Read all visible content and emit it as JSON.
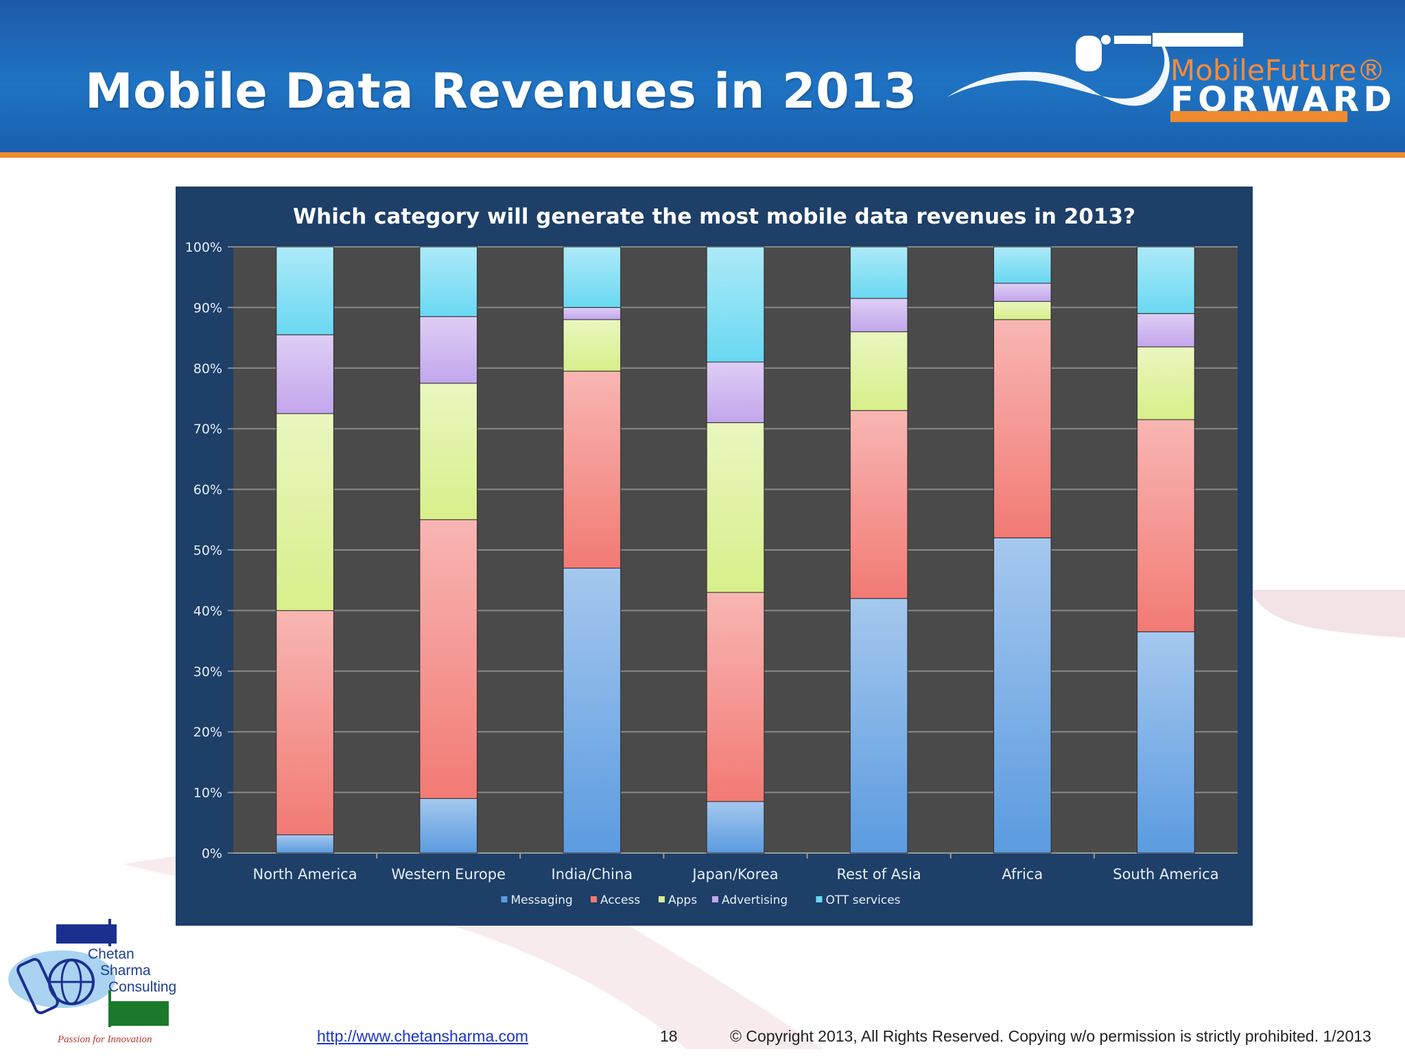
{
  "slide": {
    "title": "Mobile Data Revenues in 2013",
    "brand_mobile": "MobileFuture®",
    "brand_forward": "FORWARD",
    "company_line1": "Chetan",
    "company_line2": "Sharma",
    "company_line3": "Consulting",
    "tagline": "Passion for Innovation",
    "footer_link": "http://www.chetansharma.com",
    "page_number": "18",
    "copyright": "© Copyright 2013, All Rights Reserved. Copying w/o permission is strictly prohibited. 1/2013"
  },
  "colors": {
    "header_blue": "#1f73c3",
    "accent_orange": "#f08a2e",
    "chart_bg": "#1d3f68",
    "plot_bg": "#4a4a4a"
  },
  "chart_data": {
    "type": "bar",
    "stacked": true,
    "title": "Which category will generate the most mobile data revenues in 2013?",
    "xlabel": "",
    "ylabel": "",
    "ylim": [
      0,
      100
    ],
    "yticks": [
      "0%",
      "10%",
      "20%",
      "30%",
      "40%",
      "50%",
      "60%",
      "70%",
      "80%",
      "90%",
      "100%"
    ],
    "grid": true,
    "legend_position": "bottom",
    "categories": [
      "North America",
      "Western Europe",
      "India/China",
      "Japan/Korea",
      "Rest of Asia",
      "Africa",
      "South America"
    ],
    "series": [
      {
        "name": "Messaging",
        "color": "#5b9be0",
        "values": [
          3,
          9,
          47,
          8.5,
          42,
          52,
          36.5
        ]
      },
      {
        "name": "Access",
        "color": "#f27a74",
        "values": [
          37,
          46,
          32.5,
          34.5,
          31,
          36,
          35
        ]
      },
      {
        "name": "Apps",
        "color": "#d8ef8a",
        "values": [
          32.5,
          22.5,
          8.5,
          28,
          13,
          3,
          12
        ]
      },
      {
        "name": "Advertising",
        "color": "#c3a6ec",
        "values": [
          13,
          11,
          2,
          10,
          5.5,
          3,
          5.5
        ]
      },
      {
        "name": "OTT services",
        "color": "#6ad8f2",
        "values": [
          14.5,
          11.5,
          10,
          19,
          8.5,
          6,
          11
        ]
      }
    ]
  }
}
